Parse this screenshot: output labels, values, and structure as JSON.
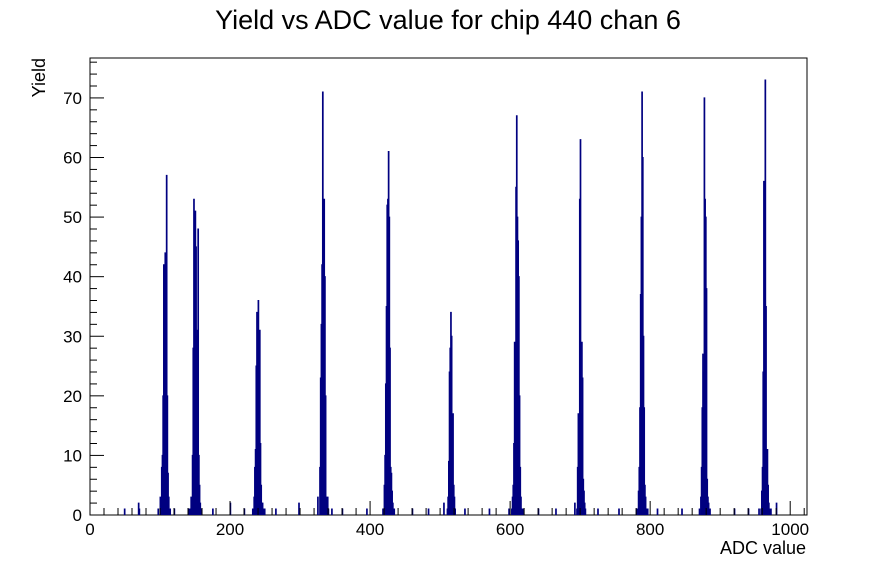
{
  "chart_data": {
    "type": "histogram",
    "title": "Yield vs ADC value for chip 440 chan 6",
    "xlabel": "ADC value",
    "ylabel": "Yield",
    "xlim": [
      0,
      1024
    ],
    "ylim": [
      0,
      76.7
    ],
    "xticks": [
      0,
      200,
      400,
      600,
      800,
      1000
    ],
    "yticks": [
      0,
      10,
      20,
      30,
      40,
      50,
      60,
      70
    ],
    "grid": false,
    "legend": "none",
    "line_color": "#000080",
    "series": [
      {
        "x": [
          49,
          69,
          70,
          97,
          100,
          102,
          103,
          104,
          105,
          106,
          107,
          108,
          109,
          110,
          111,
          112,
          113,
          114,
          120,
          140,
          142,
          144,
          146,
          147,
          148,
          149,
          150,
          151,
          152,
          153,
          154,
          155,
          156,
          157,
          158,
          175,
          200,
          220,
          232,
          234,
          235,
          236,
          237,
          238,
          239,
          240,
          241,
          242,
          243,
          244,
          245,
          246,
          247,
          248,
          249,
          265,
          298,
          325,
          328,
          329,
          330,
          331,
          332,
          333,
          334,
          335,
          336,
          337,
          338,
          339,
          340,
          345,
          360,
          395,
          418,
          420,
          421,
          422,
          423,
          424,
          425,
          426,
          427,
          428,
          429,
          430,
          431,
          432,
          433,
          434,
          460,
          483,
          505,
          510,
          511,
          512,
          513,
          514,
          515,
          516,
          517,
          518,
          519,
          520,
          521,
          535,
          570,
          598,
          602,
          603,
          604,
          605,
          606,
          607,
          608,
          609,
          610,
          611,
          612,
          613,
          614,
          615,
          616,
          618,
          640,
          665,
          692,
          695,
          696,
          697,
          698,
          699,
          700,
          701,
          702,
          703,
          704,
          705,
          706,
          707,
          725,
          755,
          780,
          782,
          783,
          784,
          785,
          786,
          787,
          788,
          789,
          790,
          791,
          792,
          793,
          794,
          795,
          796,
          810,
          845,
          870,
          872,
          873,
          874,
          875,
          876,
          877,
          878,
          879,
          880,
          881,
          882,
          883,
          884,
          885,
          920,
          940,
          955,
          958,
          959,
          960,
          961,
          962,
          963,
          964,
          965,
          966,
          967,
          968,
          969,
          970,
          971,
          972,
          980,
          1000
        ],
        "y": [
          1,
          2,
          1,
          1,
          3,
          8,
          10,
          20,
          42,
          38,
          44,
          15,
          57,
          20,
          7,
          3,
          1,
          1,
          1,
          1,
          1,
          3,
          10,
          28,
          53,
          50,
          51,
          45,
          30,
          31,
          48,
          10,
          5,
          2,
          1,
          1,
          2,
          1,
          1,
          3,
          8,
          11,
          25,
          34,
          31,
          36,
          28,
          31,
          12,
          5,
          2,
          2,
          1,
          1,
          1,
          1,
          2,
          3,
          8,
          23,
          32,
          42,
          71,
          38,
          53,
          40,
          20,
          3,
          2,
          3,
          1,
          1,
          1,
          1,
          1,
          5,
          10,
          22,
          35,
          52,
          53,
          61,
          50,
          28,
          8,
          7,
          4,
          2,
          1,
          1,
          1,
          1,
          2,
          1,
          3,
          9,
          24,
          28,
          34,
          30,
          12,
          17,
          5,
          3,
          1,
          1,
          1,
          1,
          1,
          3,
          5,
          12,
          29,
          9,
          55,
          67,
          50,
          46,
          40,
          20,
          8,
          3,
          1,
          1,
          1,
          1,
          2,
          1,
          8,
          17,
          14,
          53,
          63,
          17,
          29,
          23,
          6,
          4,
          2,
          1,
          1,
          1,
          1,
          1,
          4,
          8,
          18,
          37,
          50,
          71,
          60,
          30,
          18,
          5,
          3,
          1,
          1,
          1,
          1,
          1,
          1,
          3,
          8,
          18,
          27,
          24,
          70,
          53,
          50,
          38,
          6,
          3,
          2,
          1,
          1,
          1,
          1,
          1,
          1,
          4,
          8,
          24,
          56,
          50,
          73,
          35,
          11,
          11,
          5,
          2,
          1,
          1,
          1,
          2
        ]
      }
    ]
  }
}
